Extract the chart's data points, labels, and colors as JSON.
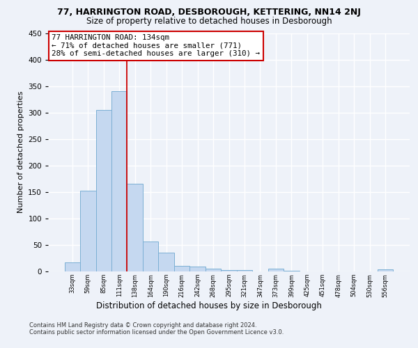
{
  "title1": "77, HARRINGTON ROAD, DESBOROUGH, KETTERING, NN14 2NJ",
  "title2": "Size of property relative to detached houses in Desborough",
  "xlabel": "Distribution of detached houses by size in Desborough",
  "ylabel": "Number of detached properties",
  "categories": [
    "33sqm",
    "59sqm",
    "85sqm",
    "111sqm",
    "138sqm",
    "164sqm",
    "190sqm",
    "216sqm",
    "242sqm",
    "268sqm",
    "295sqm",
    "321sqm",
    "347sqm",
    "373sqm",
    "399sqm",
    "425sqm",
    "451sqm",
    "478sqm",
    "504sqm",
    "530sqm",
    "556sqm"
  ],
  "values": [
    17,
    152,
    305,
    340,
    165,
    57,
    35,
    10,
    9,
    5,
    3,
    2,
    0,
    5,
    1,
    0,
    0,
    0,
    0,
    0,
    4
  ],
  "bar_color": "#c5d8f0",
  "bar_edge_color": "#7bafd4",
  "vline_x": 3.5,
  "vline_color": "#cc0000",
  "annotation_text": "77 HARRINGTON ROAD: 134sqm\n← 71% of detached houses are smaller (771)\n28% of semi-detached houses are larger (310) →",
  "annotation_box_color": "#ffffff",
  "annotation_box_edge_color": "#cc0000",
  "ylim": [
    0,
    450
  ],
  "yticks": [
    0,
    50,
    100,
    150,
    200,
    250,
    300,
    350,
    400,
    450
  ],
  "footer1": "Contains HM Land Registry data © Crown copyright and database right 2024.",
  "footer2": "Contains public sector information licensed under the Open Government Licence v3.0.",
  "bg_color": "#eef2f9",
  "plot_bg_color": "#eef2f9",
  "grid_color": "#ffffff"
}
